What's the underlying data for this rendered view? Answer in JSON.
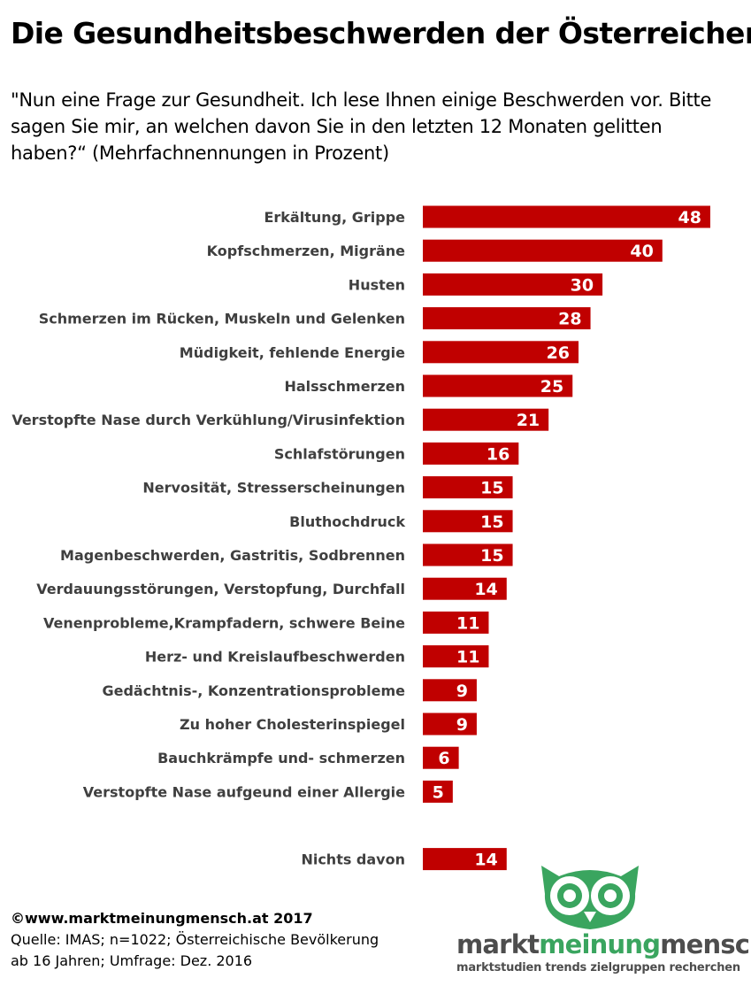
{
  "title": "Die Gesundheitsbeschwerden der Österreicher",
  "subtitle": "\"Nun eine Frage zur Gesundheit. Ich lese Ihnen einige Beschwerden vor. Bitte sagen Sie mir, an welchen davon Sie in den letzten 12 Monaten gelitten haben?“ (Mehrfachnennungen in Prozent)",
  "colors": {
    "bar": "#c00000",
    "label": "#3f3f3f",
    "logo_green": "#3aa55f",
    "logo_grey": "#4d4d4d"
  },
  "chart_data": {
    "type": "bar",
    "orientation": "horizontal",
    "categories": [
      "Erkältung, Grippe",
      "Kopfschmerzen, Migräne",
      "Husten",
      "Schmerzen im Rücken, Muskeln und Gelenken",
      "Müdigkeit, fehlende Energie",
      "Halsschmerzen",
      "Verstopfte Nase durch Verkühlung/Virusinfektion",
      "Schlafstörungen",
      "Nervosität, Stresserscheinungen",
      "Bluthochdruck",
      "Magenbeschwerden, Gastritis, Sodbrennen",
      "Verdauungsstörungen, Verstopfung, Durchfall",
      "Venenprobleme,Krampfadern, schwere Beine",
      "Herz- und Kreislaufbeschwerden",
      "Gedächtnis-, Konzentrationsprobleme",
      "Zu hoher Cholesterinspiegel",
      "Bauchkrämpfe und- schmerzen",
      "Verstopfte Nase aufgeund einer Allergie",
      "Nichts davon"
    ],
    "values": [
      48,
      40,
      30,
      28,
      26,
      25,
      21,
      16,
      15,
      15,
      15,
      14,
      11,
      11,
      9,
      9,
      6,
      5,
      14
    ],
    "data_labels": true,
    "grid": false,
    "legend": "none"
  },
  "footer": {
    "site": "©www.marktmeinungmensch.at 2017",
    "source_line1": "Quelle: IMAS; n=1022; Österreichische Bevölkerung",
    "source_line2": "ab 16 Jahren; Umfrage: Dez. 2016"
  },
  "logo": {
    "icon": "owl-icon",
    "word1": "markt",
    "word2": "meinung",
    "word3": "mensch",
    "tagline": "marktstudien trends zielgruppen recherchen"
  }
}
